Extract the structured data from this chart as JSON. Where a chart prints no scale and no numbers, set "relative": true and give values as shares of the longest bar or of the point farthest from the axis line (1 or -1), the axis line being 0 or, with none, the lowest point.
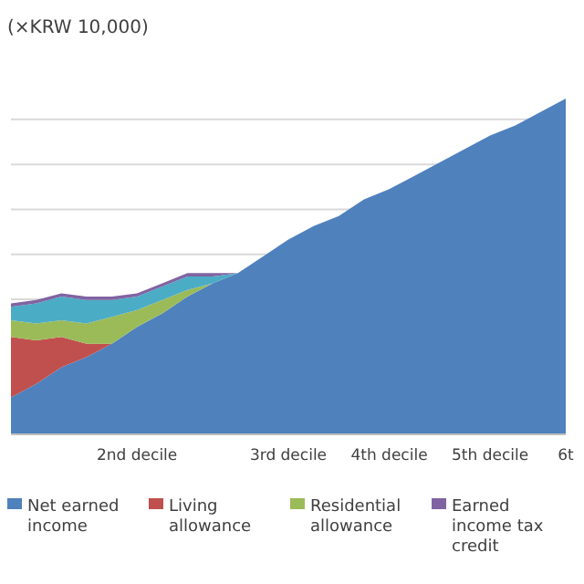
{
  "chart_data": {
    "type": "area",
    "stacked": true,
    "relative": true,
    "ylabel": "(×KRW 10,000)",
    "grid": "y",
    "legend": "bottom",
    "categories": [
      null,
      null,
      null,
      null,
      null,
      "2nd decile",
      null,
      null,
      null,
      null,
      null,
      "3rd decile",
      null,
      null,
      null,
      "4th decile",
      null,
      null,
      null,
      "5th decile",
      null,
      null,
      "6t"
    ],
    "series": [
      {
        "name": "Net earned income",
        "color": "#4f81bd",
        "values": [
          0.11,
          0.15,
          0.2,
          0.23,
          0.27,
          0.32,
          0.36,
          0.41,
          0.45,
          0.48,
          0.53,
          0.58,
          0.62,
          0.65,
          0.7,
          0.73,
          0.77,
          0.81,
          0.85,
          0.89,
          0.92,
          0.96,
          1
        ]
      },
      {
        "name": "Living allowance",
        "color": "#c0504d",
        "values": [
          0.18,
          0.13,
          0.09,
          0.04,
          0,
          0,
          0,
          0,
          0,
          0,
          0,
          0,
          0,
          0,
          0,
          0,
          0,
          0,
          0,
          0,
          0,
          0,
          0
        ]
      },
      {
        "name": "Residential allowance",
        "color": "#9bbb59",
        "values": [
          0.05,
          0.05,
          0.05,
          0.06,
          0.08,
          0.05,
          0.04,
          0.02,
          0,
          0,
          0,
          0,
          0,
          0,
          0,
          0,
          0,
          0,
          0,
          0,
          0,
          0,
          0
        ]
      },
      {
        "color": "#4bacc6",
        "values": [
          0.04,
          0.06,
          0.07,
          0.07,
          0.05,
          0.04,
          0.04,
          0.04,
          0.02,
          0,
          0,
          0,
          0,
          0,
          0,
          0,
          0,
          0,
          0,
          0,
          0,
          0,
          0
        ]
      },
      {
        "name": "Earned income tax credit",
        "color": "#8064a2",
        "values": [
          0.01,
          0.01,
          0.01,
          0.01,
          0.01,
          0.01,
          0.01,
          0.01,
          0.01,
          0,
          0,
          0,
          0,
          0,
          0,
          0,
          0,
          0,
          0,
          0,
          0,
          0,
          0
        ]
      }
    ]
  }
}
